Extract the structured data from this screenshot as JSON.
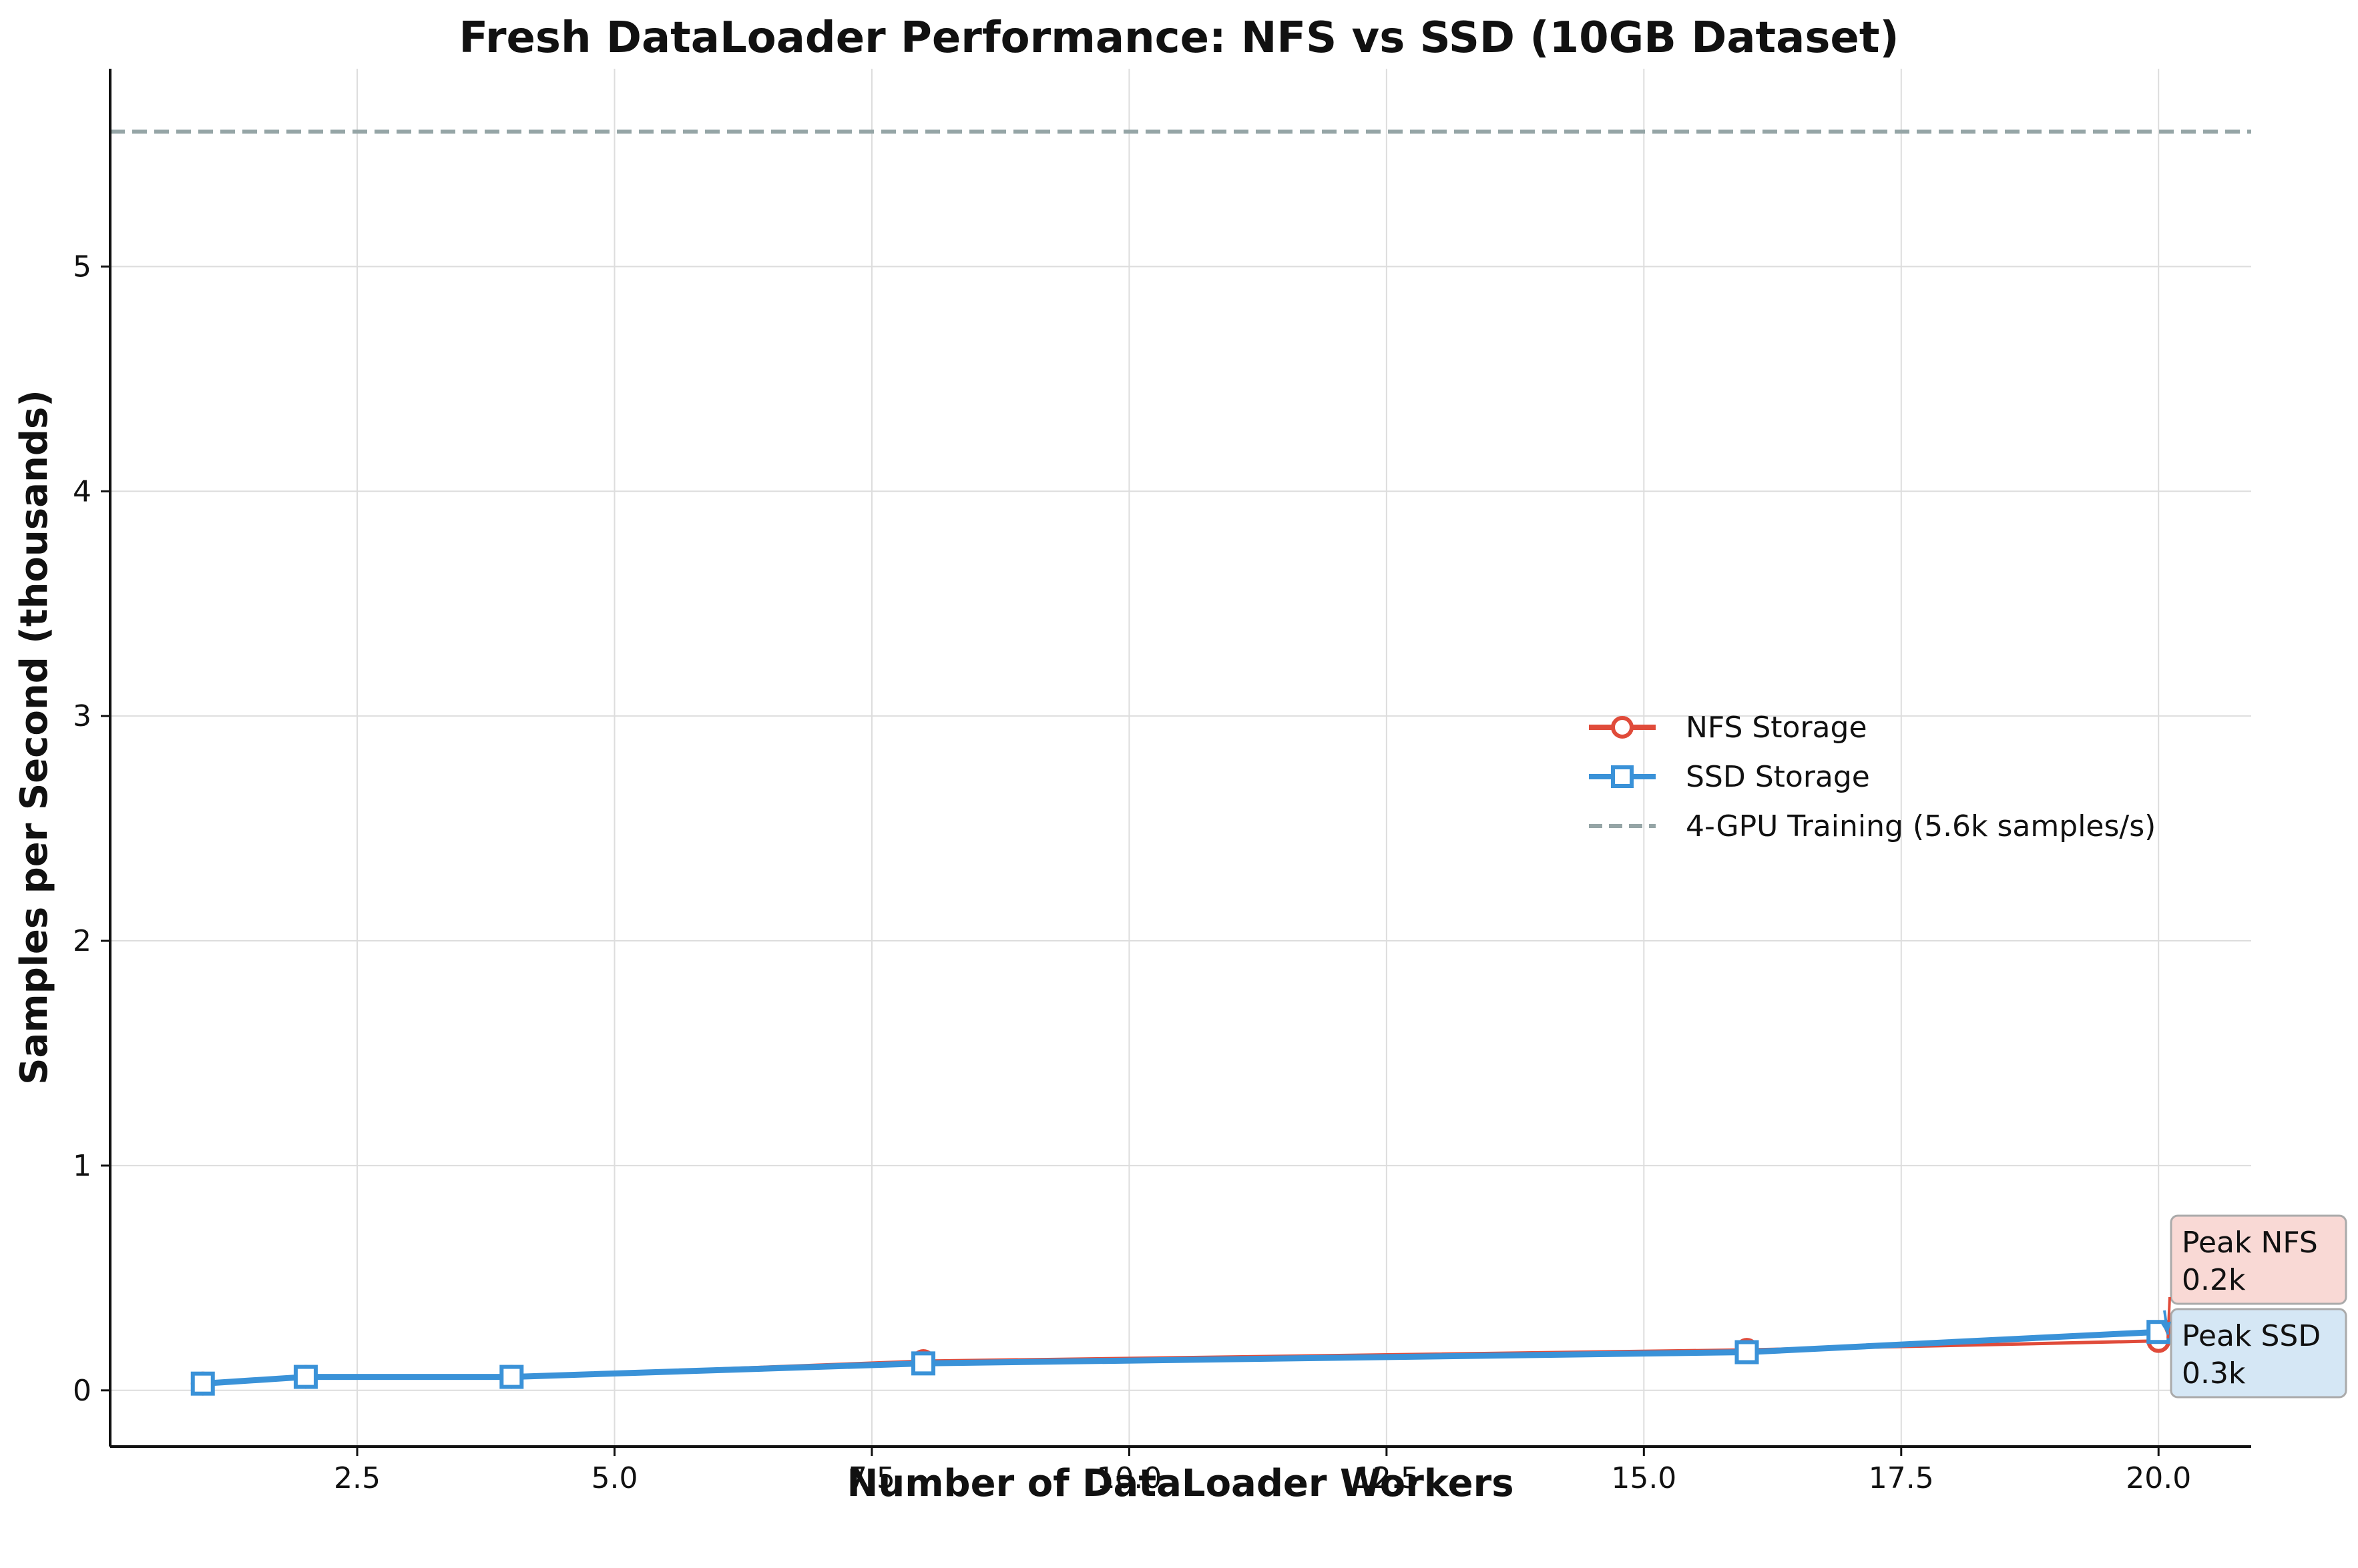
{
  "chart_data": {
    "type": "line",
    "title": "Fresh DataLoader Performance: NFS vs SSD (10GB Dataset)",
    "xlabel": "Number of DataLoader Workers",
    "ylabel": "Samples per Second (thousands)",
    "xlim": [
      0.1,
      20.9
    ],
    "ylim": [
      -0.25,
      5.88
    ],
    "x": [
      1,
      2,
      4,
      8,
      16,
      20
    ],
    "xticks": [
      2.5,
      5.0,
      7.5,
      10.0,
      12.5,
      15.0,
      17.5,
      20.0
    ],
    "xtick_labels": [
      "2.5",
      "5.0",
      "7.5",
      "10.0",
      "12.5",
      "15.0",
      "17.5",
      "20.0"
    ],
    "yticks": [
      0,
      1,
      2,
      3,
      4,
      5
    ],
    "ytick_labels": [
      "0",
      "1",
      "2",
      "3",
      "4",
      "5"
    ],
    "grid": true,
    "legend_position": "center-right",
    "series": [
      {
        "name": "NFS Storage",
        "values": [
          0.03,
          0.06,
          0.06,
          0.13,
          0.18,
          0.22
        ],
        "color": "#e04b3a",
        "marker": "circle"
      },
      {
        "name": "SSD Storage",
        "values": [
          0.03,
          0.06,
          0.06,
          0.12,
          0.17,
          0.26
        ],
        "color": "#3a92d8",
        "marker": "square"
      }
    ],
    "reference_line": {
      "name": "4-GPU Training (5.6k samples/s)",
      "value": 5.6,
      "color": "#95a5a6",
      "style": "dashed"
    },
    "annotations": [
      {
        "lines": [
          "Peak NFS",
          "0.2k"
        ],
        "series": "NFS Storage",
        "x": 20,
        "y": 0.22,
        "box_color": "#f9d9d5",
        "border_color": "#aaaaaa",
        "arrow_color": "#e04b3a"
      },
      {
        "lines": [
          "Peak SSD",
          "0.3k"
        ],
        "series": "SSD Storage",
        "x": 20,
        "y": 0.26,
        "box_color": "#d5e7f5",
        "border_color": "#aaaaaa",
        "arrow_color": "#3a92d8"
      }
    ]
  }
}
